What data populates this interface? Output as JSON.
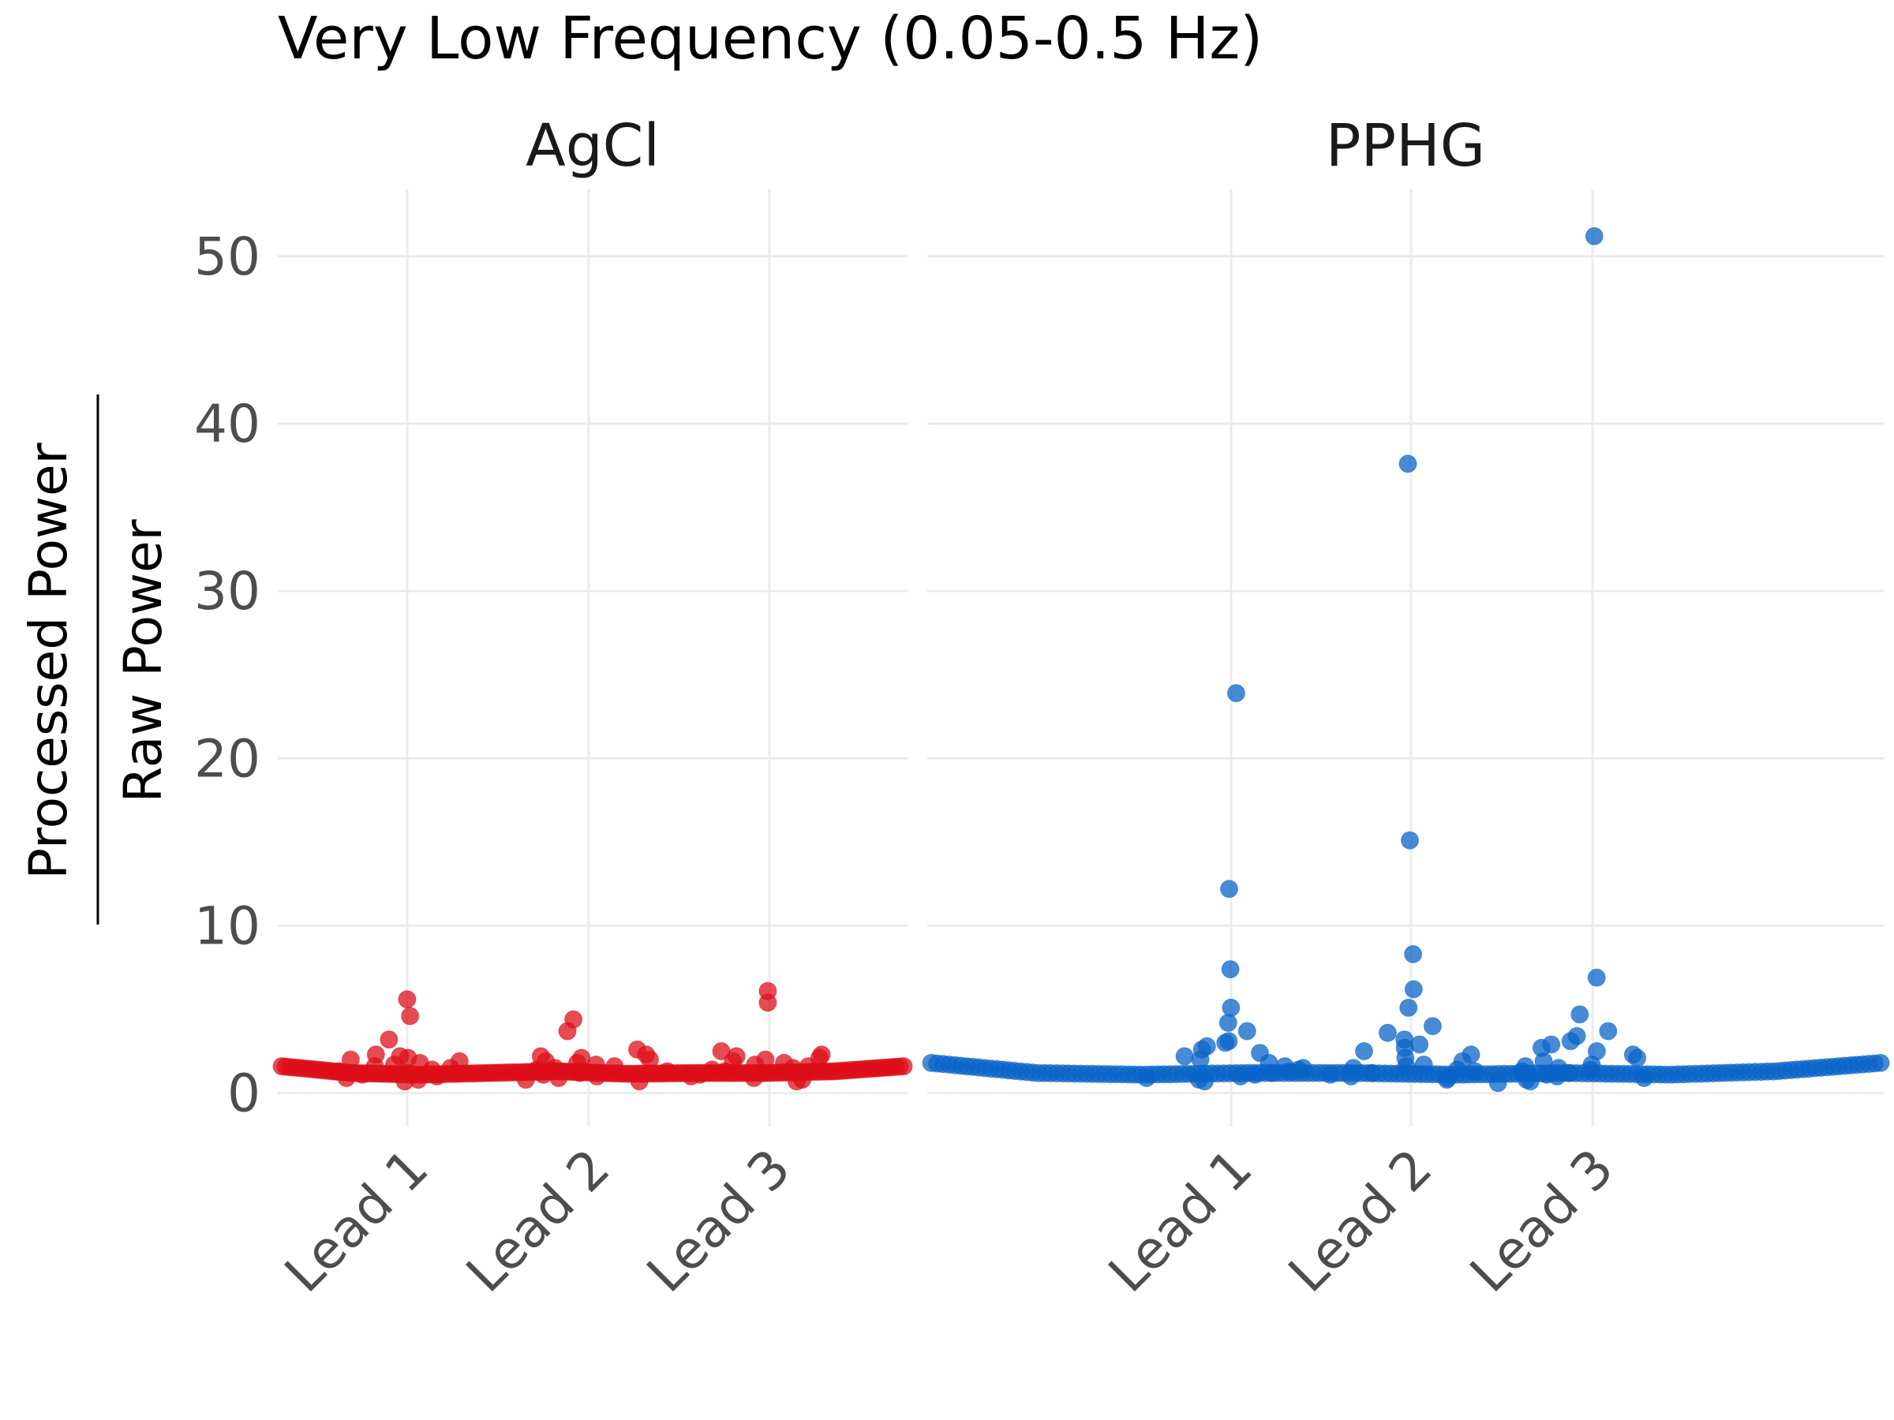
{
  "chart_data": {
    "type": "scatter",
    "title": "Very Low Frequency (0.05-0.5 Hz)",
    "ylabel": {
      "numerator": "Processed Power",
      "denominator": "Raw Power"
    },
    "categories": [
      "Lead 1",
      "Lead 2",
      "Lead 3"
    ],
    "yticks": [
      0,
      10,
      20,
      30,
      40,
      50
    ],
    "ylim": [
      -2,
      54
    ],
    "grid": true,
    "legend": "none",
    "panels": [
      {
        "name": "AgCl",
        "color": "#dd0f1a",
        "baseline": [
          1.6,
          1.2,
          1.1,
          1.2,
          1.3,
          1.15,
          1.2,
          1.2,
          1.3,
          1.6
        ],
        "points": {
          "Lead 1": [
            5.6,
            4.6,
            3.2,
            2.3,
            2.2,
            2.1,
            2.0,
            1.9,
            1.8,
            1.7,
            1.6,
            1.5,
            1.4,
            1.3,
            1.2,
            1.1,
            1.0,
            0.9,
            0.8,
            0.7
          ],
          "Lead 2": [
            4.4,
            3.7,
            2.6,
            2.3,
            2.2,
            2.1,
            2.0,
            1.9,
            1.8,
            1.7,
            1.6,
            1.5,
            1.4,
            1.3,
            1.2,
            1.1,
            1.0,
            0.9,
            0.8,
            0.7
          ],
          "Lead 3": [
            6.1,
            5.4,
            2.5,
            2.3,
            2.2,
            2.1,
            2.0,
            1.9,
            1.8,
            1.7,
            1.6,
            1.5,
            1.4,
            1.3,
            1.2,
            1.1,
            1.0,
            0.9,
            0.8,
            0.7
          ]
        }
      },
      {
        "name": "PPHG",
        "color": "#0a64c8",
        "baseline": [
          1.8,
          1.2,
          1.1,
          1.2,
          1.2,
          1.1,
          1.2,
          1.1,
          1.3,
          1.8
        ],
        "points": {
          "Lead 1": [
            23.9,
            12.2,
            7.4,
            5.1,
            4.2,
            3.7,
            3.1,
            3.0,
            2.8,
            2.6,
            2.4,
            2.2,
            2.0,
            1.8,
            1.6,
            1.5,
            1.4,
            1.3,
            1.2,
            1.1,
            1.0,
            0.9,
            0.8,
            0.7
          ],
          "Lead 2": [
            37.6,
            15.1,
            8.3,
            6.2,
            5.1,
            4.0,
            3.6,
            3.2,
            2.9,
            2.7,
            2.5,
            2.3,
            2.1,
            1.9,
            1.7,
            1.6,
            1.5,
            1.4,
            1.3,
            1.2,
            1.1,
            1.0,
            0.9,
            0.8
          ],
          "Lead 3": [
            51.2,
            6.9,
            4.7,
            3.7,
            3.4,
            3.1,
            2.9,
            2.7,
            2.5,
            2.3,
            2.1,
            1.9,
            1.7,
            1.6,
            1.5,
            1.4,
            1.3,
            1.2,
            1.1,
            1.0,
            0.9,
            0.8,
            0.7,
            0.6
          ]
        }
      }
    ]
  }
}
